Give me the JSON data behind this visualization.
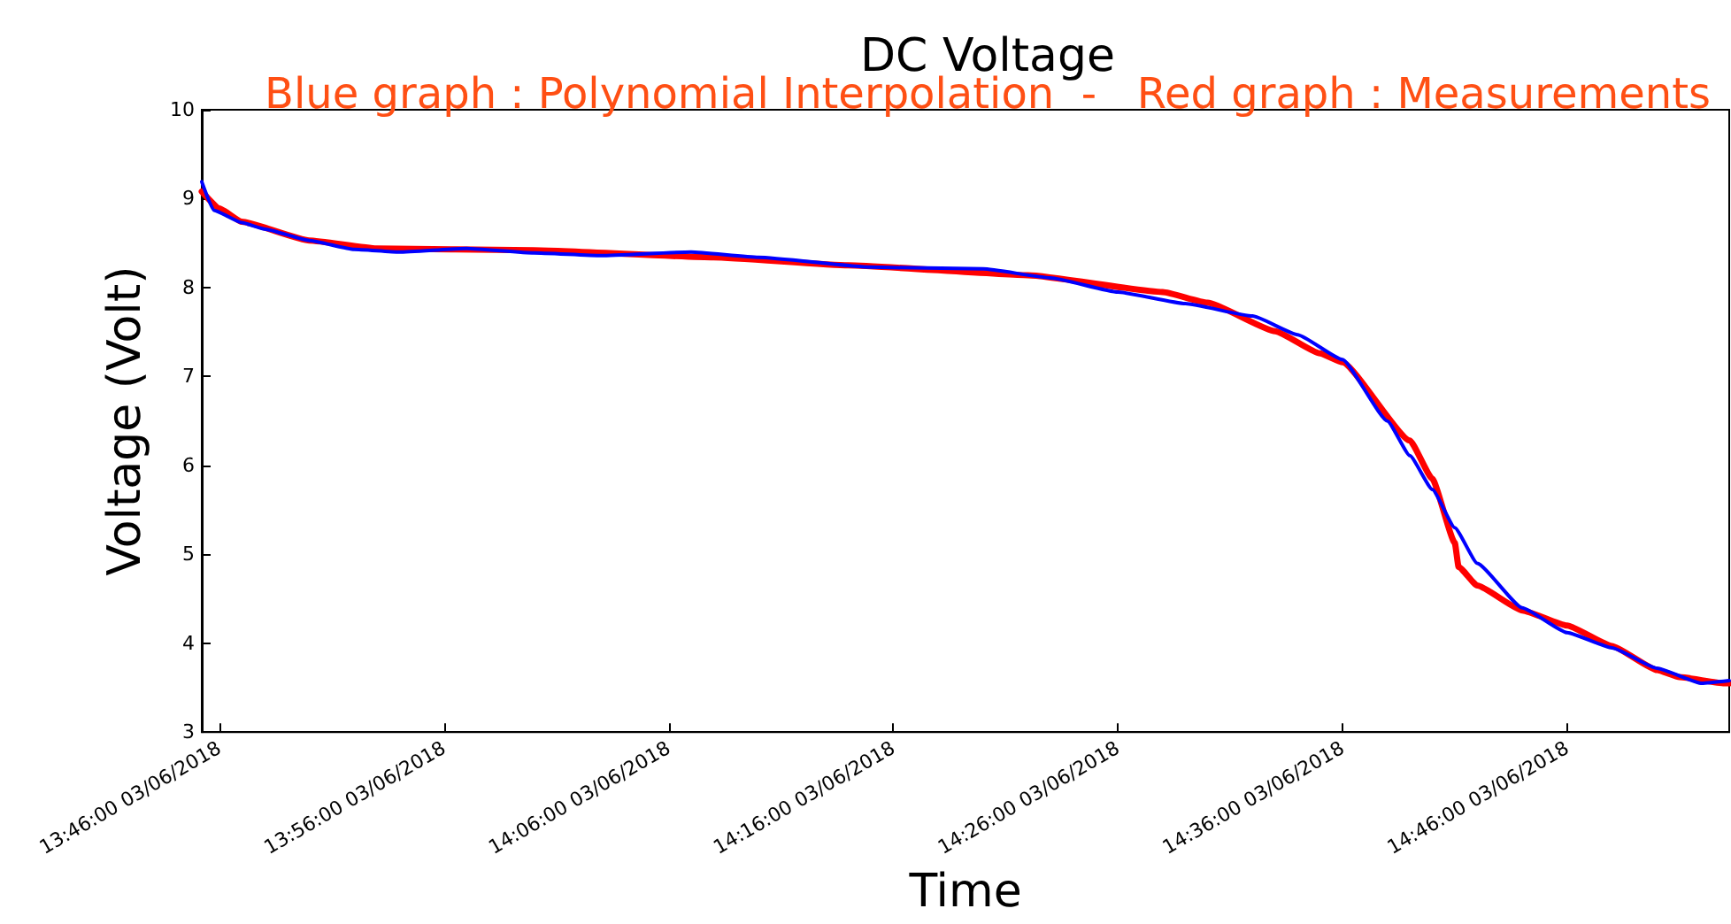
{
  "chart_data": {
    "type": "line",
    "title": "DC Voltage",
    "subtitle": "Blue graph : Polynomial Interpolation  -   Red graph : Measurements",
    "xlabel": "Time",
    "ylabel": "Voltage (Volt)",
    "xlim": [
      "2018-06-03T13:45:13",
      "2018-06-03T14:53:13"
    ],
    "xticks": [
      {
        "value": "2018-06-03T13:46",
        "label": "13:46:00 03/06/2018"
      },
      {
        "value": "2018-06-03T13:56",
        "label": "13:56:00 03/06/2018"
      },
      {
        "value": "2018-06-03T14:06",
        "label": "14:06:00 03/06/2018"
      },
      {
        "value": "2018-06-03T14:16",
        "label": "14:16:00 03/06/2018"
      },
      {
        "value": "2018-06-03T14:26",
        "label": "14:26:00 03/06/2018"
      },
      {
        "value": "2018-06-03T14:36",
        "label": "14:36:00 03/06/2018"
      },
      {
        "value": "2018-06-03T14:46",
        "label": "14:46:00 03/06/2018"
      }
    ],
    "ylim": [
      3,
      10
    ],
    "yticks": [
      3,
      4,
      5,
      6,
      7,
      8,
      9,
      10
    ],
    "grid": false,
    "marker": "none",
    "line_style": "solid",
    "series": [
      {
        "color": "#ff0000",
        "x": [
          "2018-06-03T13:45:13",
          "2018-06-03T13:46",
          "2018-06-03T13:47",
          "2018-06-03T13:50",
          "2018-06-03T13:53",
          "2018-06-03T14:00",
          "2018-06-03T14:08",
          "2018-06-03T14:14",
          "2018-06-03T14:22",
          "2018-06-03T14:28",
          "2018-06-03T14:30",
          "2018-06-03T14:33",
          "2018-06-03T14:35",
          "2018-06-03T14:36",
          "2018-06-03T14:39",
          "2018-06-03T14:40",
          "2018-06-03T14:41",
          "2018-06-03T14:41:10",
          "2018-06-03T14:42",
          "2018-06-03T14:44",
          "2018-06-03T14:46",
          "2018-06-03T14:48",
          "2018-06-03T14:50",
          "2018-06-03T14:51",
          "2018-06-03T14:53",
          "2018-06-03T14:53:13"
        ],
        "values": [
          9.08,
          8.89,
          8.74,
          8.53,
          8.44,
          8.42,
          8.34,
          8.25,
          8.14,
          7.95,
          7.83,
          7.51,
          7.26,
          7.16,
          6.28,
          5.85,
          5.13,
          4.86,
          4.65,
          4.37,
          4.2,
          3.97,
          3.7,
          3.62,
          3.55,
          3.55
        ]
      },
      {
        "color": "#0000ff",
        "x": [
          "2018-06-03T13:45:13",
          "2018-06-03T13:45:45",
          "2018-06-03T13:47",
          "2018-06-03T13:48",
          "2018-06-03T13:50",
          "2018-06-03T13:52",
          "2018-06-03T13:54",
          "2018-06-03T13:57",
          "2018-06-03T14:00",
          "2018-06-03T14:03",
          "2018-06-03T14:07",
          "2018-06-03T14:10",
          "2018-06-03T14:15",
          "2018-06-03T14:20",
          "2018-06-03T14:23",
          "2018-06-03T14:26",
          "2018-06-03T14:29",
          "2018-06-03T14:32",
          "2018-06-03T14:34",
          "2018-06-03T14:36",
          "2018-06-03T14:38",
          "2018-06-03T14:39",
          "2018-06-03T14:40",
          "2018-06-03T14:41",
          "2018-06-03T14:42",
          "2018-06-03T14:44",
          "2018-06-03T14:46",
          "2018-06-03T14:48",
          "2018-06-03T14:50",
          "2018-06-03T14:52",
          "2018-06-03T14:53:13"
        ],
        "values": [
          9.19,
          8.87,
          8.73,
          8.66,
          8.53,
          8.43,
          8.4,
          8.44,
          8.39,
          8.36,
          8.4,
          8.34,
          8.23,
          8.21,
          8.11,
          7.95,
          7.82,
          7.68,
          7.47,
          7.19,
          6.5,
          6.11,
          5.73,
          5.3,
          4.9,
          4.4,
          4.12,
          3.95,
          3.72,
          3.55,
          3.58
        ]
      }
    ]
  }
}
